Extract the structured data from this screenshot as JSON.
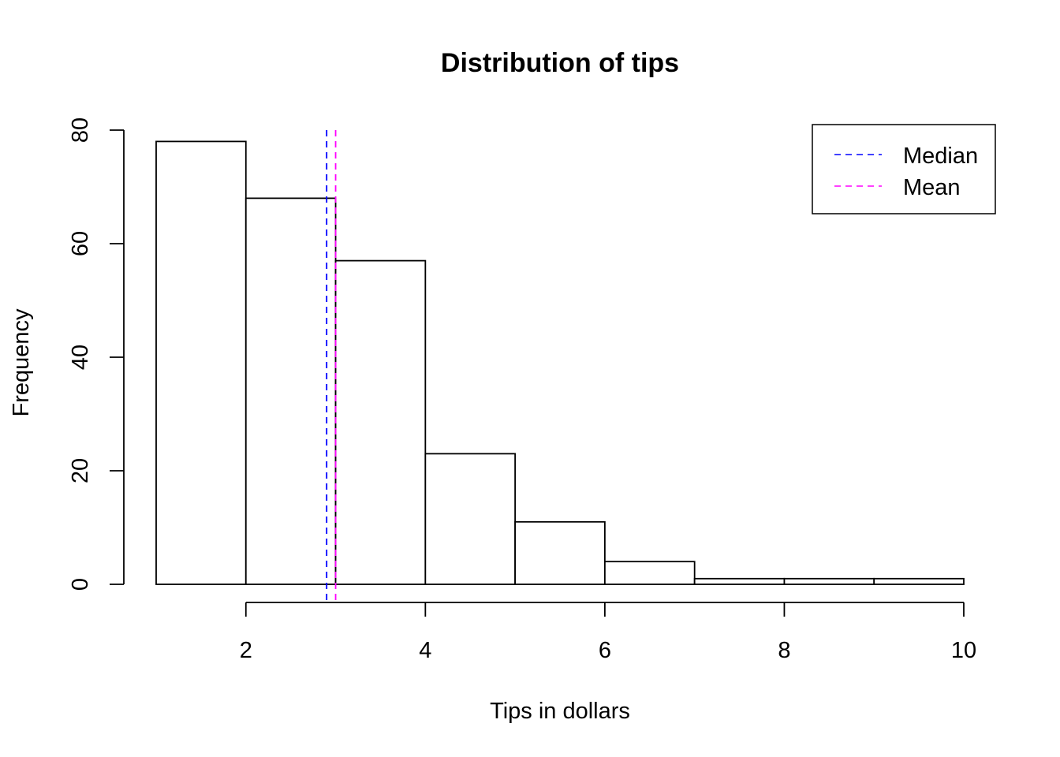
{
  "chart_data": {
    "type": "bar",
    "subtype": "histogram",
    "title": "Distribution of tips",
    "xlabel": "Tips in dollars",
    "ylabel": "Frequency",
    "bins": [
      {
        "start": 1,
        "end": 2,
        "count": 78
      },
      {
        "start": 2,
        "end": 3,
        "count": 68
      },
      {
        "start": 3,
        "end": 4,
        "count": 57
      },
      {
        "start": 4,
        "end": 5,
        "count": 23
      },
      {
        "start": 5,
        "end": 6,
        "count": 11
      },
      {
        "start": 6,
        "end": 7,
        "count": 4
      },
      {
        "start": 7,
        "end": 8,
        "count": 1
      },
      {
        "start": 8,
        "end": 9,
        "count": 1
      },
      {
        "start": 9,
        "end": 10,
        "count": 1
      }
    ],
    "xlim": [
      1,
      10
    ],
    "ylim": [
      0,
      80
    ],
    "x_ticks": [
      2,
      4,
      6,
      8,
      10
    ],
    "y_ticks": [
      0,
      20,
      40,
      60,
      80
    ],
    "bar_fill": "#ffffff",
    "bar_stroke": "#000000",
    "reference_lines": [
      {
        "name": "Median",
        "x": 2.9,
        "color": "#0000ff",
        "style": "dashed"
      },
      {
        "name": "Mean",
        "x": 3.0,
        "color": "#ff00ff",
        "style": "dashed"
      }
    ],
    "legend": {
      "position": "top-right",
      "entries": [
        "Median",
        "Mean"
      ]
    },
    "grid": false
  }
}
